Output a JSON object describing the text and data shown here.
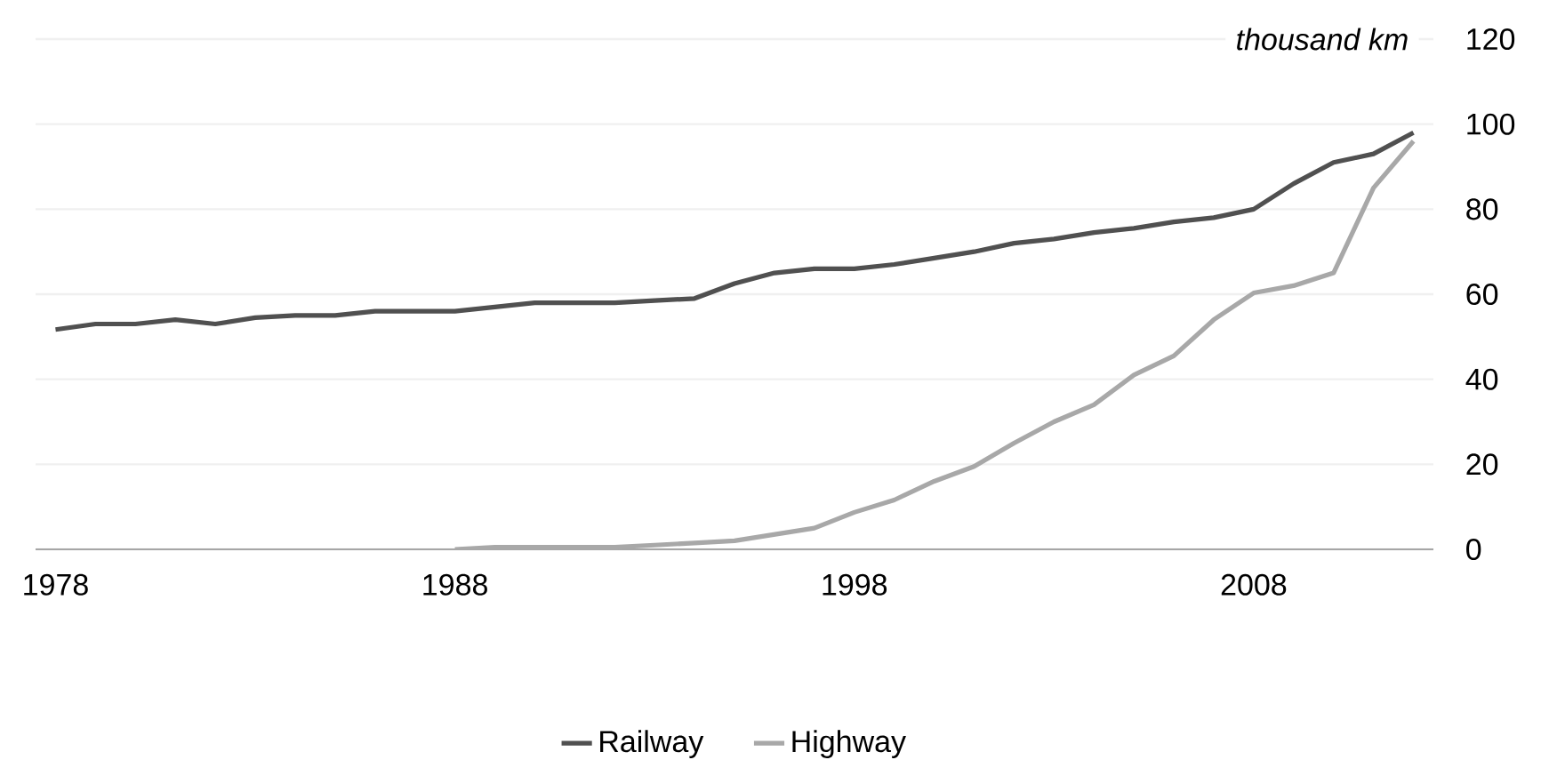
{
  "chart_data": {
    "type": "line",
    "ylabel": "thousand km",
    "categories": [
      "1978",
      null,
      null,
      null,
      null,
      null,
      null,
      null,
      null,
      null,
      "1988",
      null,
      null,
      null,
      null,
      null,
      null,
      null,
      null,
      null,
      "1998",
      null,
      null,
      null,
      null,
      null,
      null,
      null,
      null,
      null,
      "2008",
      null,
      null,
      null,
      null
    ],
    "series": [
      {
        "name": "Railway",
        "color": "#505050",
        "values": [
          51.7,
          53,
          53,
          54,
          53,
          54.5,
          55,
          55,
          56,
          56,
          56,
          57,
          58,
          58,
          58,
          58.5,
          59,
          62.5,
          65,
          66,
          66,
          67,
          68.5,
          70,
          72,
          73,
          74.5,
          75.5,
          77,
          78,
          80,
          86,
          91,
          93,
          98
        ]
      },
      {
        "name": "Highway",
        "color": "#a8a8a8",
        "values": [
          null,
          null,
          null,
          null,
          null,
          null,
          null,
          null,
          null,
          null,
          0,
          0.5,
          0.5,
          0.5,
          0.5,
          1,
          1.5,
          2,
          3.5,
          5,
          8.7,
          11.6,
          16,
          19.5,
          25,
          30,
          34,
          41,
          45.5,
          54,
          60.3,
          62,
          65,
          85,
          96
        ]
      }
    ],
    "ylim": [
      0,
      120
    ],
    "yticks": [
      0,
      20,
      40,
      60,
      80,
      100,
      120
    ],
    "grid": "y",
    "legend": "bottom",
    "line_style": "solid",
    "marker": "none"
  }
}
